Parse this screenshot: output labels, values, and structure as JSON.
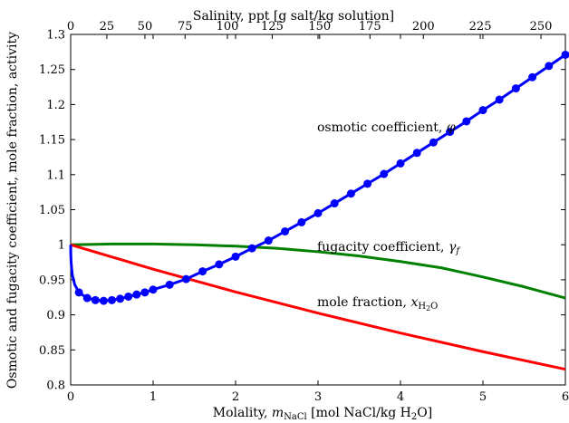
{
  "chart_data": {
    "type": "line",
    "title": "",
    "xlabel": "Molality, m_NaCl [mol NaCl/kg H2O]",
    "xlabel_parts": {
      "prefix": "Molality, ",
      "var": "m",
      "sub": "NaCl",
      "suffix": " [mol NaCl/kg H",
      "suffix_sub": "2",
      "suffix_end": "O]"
    },
    "ylabel": "Osmotic and fugacity coefficient, mole fraction, activity",
    "x2label": "Salinity, ppt [g salt/kg solution]",
    "xlim": [
      0,
      6
    ],
    "ylim": [
      0.8,
      1.3
    ],
    "xticks": [
      "0",
      "1",
      "2",
      "3",
      "4",
      "5",
      "6"
    ],
    "yticks": [
      "0.8",
      "0.85",
      "0.9",
      "0.95",
      "1",
      "1.05",
      "1.1",
      "1.15",
      "1.2",
      "1.25",
      "1.3"
    ],
    "x2ticks": [
      "0",
      "25",
      "50",
      "75",
      "100",
      "125",
      "150",
      "175",
      "200",
      "225",
      "250"
    ],
    "grid": false,
    "series": [
      {
        "name": "osmotic coefficient, φ",
        "color": "#0000ff",
        "markers": "circle",
        "x": [
          0.0,
          0.001,
          0.005,
          0.01,
          0.02,
          0.05,
          0.1,
          0.2,
          0.3,
          0.4,
          0.5,
          0.6,
          0.7,
          0.8,
          0.9,
          1.0,
          1.2,
          1.4,
          1.6,
          1.8,
          2.0,
          2.2,
          2.4,
          2.6,
          2.8,
          3.0,
          3.2,
          3.4,
          3.6,
          3.8,
          4.0,
          4.2,
          4.4,
          4.6,
          4.8,
          5.0,
          5.2,
          5.4,
          5.6,
          5.8,
          6.0
        ],
        "y": [
          1.0,
          0.988,
          0.976,
          0.968,
          0.957,
          0.943,
          0.932,
          0.924,
          0.921,
          0.92,
          0.921,
          0.923,
          0.926,
          0.929,
          0.932,
          0.936,
          0.943,
          0.951,
          0.962,
          0.972,
          0.983,
          0.995,
          1.006,
          1.019,
          1.032,
          1.045,
          1.059,
          1.073,
          1.087,
          1.101,
          1.116,
          1.131,
          1.146,
          1.161,
          1.176,
          1.192,
          1.207,
          1.223,
          1.239,
          1.255,
          1.271
        ],
        "label": "osmotic coefficient, ",
        "label_var": "φ"
      },
      {
        "name": "fugacity coefficient, γ_f",
        "color": "#008000",
        "markers": "none",
        "x": [
          0,
          0.5,
          1.0,
          1.5,
          2.0,
          2.5,
          3.0,
          3.5,
          4.0,
          4.5,
          5.0,
          5.5,
          6.0
        ],
        "y": [
          1.0,
          1.001,
          1.001,
          1.0,
          0.998,
          0.995,
          0.99,
          0.984,
          0.976,
          0.967,
          0.954,
          0.94,
          0.924
        ],
        "label": "fugacity coefficient, ",
        "label_var": "γ",
        "label_sub": "f"
      },
      {
        "name": "mole fraction, x_H2O",
        "color": "#ff0000",
        "markers": "none",
        "x": [
          0,
          1,
          2,
          3,
          4,
          5,
          6
        ],
        "y": [
          1.0,
          0.9652,
          0.9327,
          0.9025,
          0.8741,
          0.8475,
          0.8224
        ],
        "label": "mole fraction, ",
        "label_var": "x",
        "label_sub": "H",
        "label_subsub": "2",
        "label_sub_end": "O"
      }
    ]
  }
}
